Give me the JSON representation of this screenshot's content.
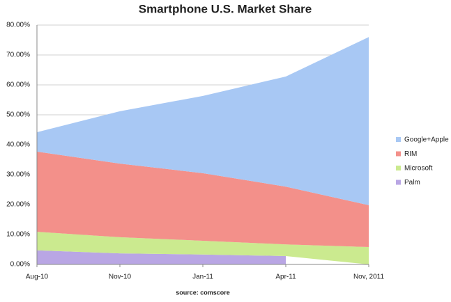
{
  "chart_data": {
    "type": "stacked-area",
    "title": "Smartphone U.S. Market Share",
    "source": "source: comscore",
    "categories": [
      "Aug-10",
      "Nov-10",
      "Jan-11",
      "Apr-11",
      "Nov, 2011"
    ],
    "series": [
      {
        "name": "Google+Apple",
        "color": "#a8c8f4",
        "values": [
          6.5,
          17.5,
          25.8,
          36.8,
          56.2
        ]
      },
      {
        "name": "RIM",
        "color": "#f3908a",
        "values": [
          26.8,
          24.6,
          22.6,
          19.3,
          14.0
        ]
      },
      {
        "name": "Microsoft",
        "color": "#cbea8f",
        "values": [
          6.2,
          5.4,
          4.6,
          3.9,
          5.8
        ]
      },
      {
        "name": "Palm",
        "color": "#b9a6e4",
        "values": [
          4.7,
          3.7,
          3.3,
          2.8,
          null
        ]
      }
    ],
    "ylim": [
      0,
      80
    ],
    "yticks": [
      {
        "value": 0,
        "label": "0.00%"
      },
      {
        "value": 10,
        "label": "10.00%"
      },
      {
        "value": 20,
        "label": "20.00%"
      },
      {
        "value": 30,
        "label": "30.00%"
      },
      {
        "value": 40,
        "label": "40.00%"
      },
      {
        "value": 50,
        "label": "50.00%"
      },
      {
        "value": 60,
        "label": "60.00%"
      },
      {
        "value": 70,
        "label": "70.00%"
      },
      {
        "value": 80,
        "label": "80.00%"
      }
    ],
    "grid": true
  }
}
